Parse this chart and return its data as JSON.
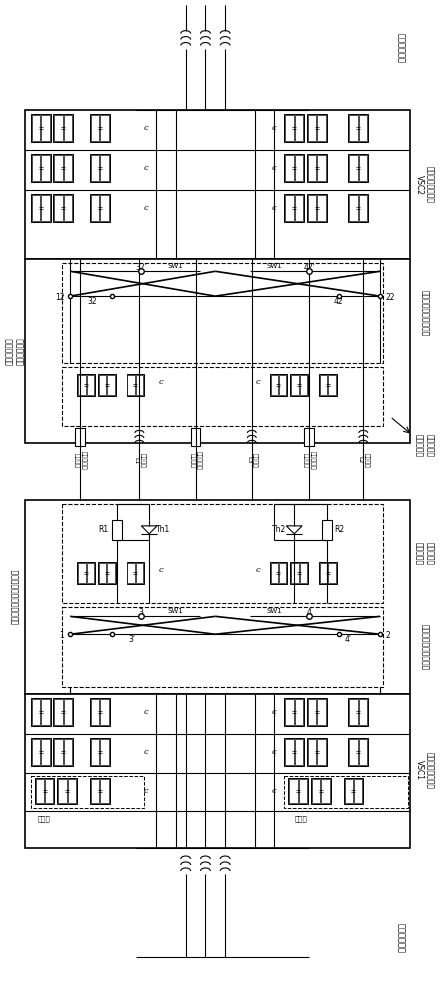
{
  "bg_color": "#ffffff",
  "labels": {
    "receiving_ac": "受端交流系统",
    "sending_ac": "送端交流系统",
    "receiving_vsc": "受端电压源换流器\nVSC2",
    "sending_vsc": "送端电压源换流器\nVSC1",
    "receiving_coord": "受端极间功率\n协调控制装置",
    "sending_coord": "送端极间功率协调控制装置",
    "receiving_dc_switch": "受端极间直流转换开关",
    "sending_dc_switch": "送端极间直流转换开关",
    "receiving_current_switch": "受端极间直\n流转移开关",
    "sending_current_switch": "送端极间直\n流转移开关",
    "cable1": "第一极交流\n电缆线路",
    "cable2": "第二极交流\n电缆线路",
    "cable3": "第三极交流\n电缆线路",
    "impedance1": "线路阻抗\nL1",
    "impedance2": "线路阻抗\nL2",
    "impedance3": "线路阻抗\nL3",
    "submodule": "子模块"
  }
}
